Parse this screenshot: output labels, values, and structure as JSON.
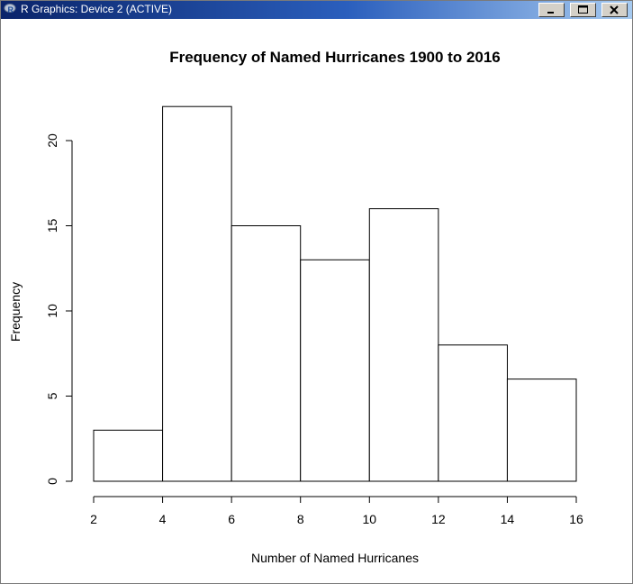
{
  "window": {
    "title": "R Graphics: Device 2 (ACTIVE)",
    "icons": {
      "app": "r-logo-icon",
      "minimize": "minimize-icon",
      "maximize": "maximize-icon",
      "close": "close-icon"
    }
  },
  "chart_data": {
    "type": "bar",
    "subtype": "histogram",
    "title": "Frequency of Named Hurricanes 1900 to 2016",
    "xlabel": "Number of Named Hurricanes",
    "ylabel": "Frequency",
    "bins": [
      {
        "from": 2,
        "to": 4,
        "count": 3
      },
      {
        "from": 4,
        "to": 6,
        "count": 22
      },
      {
        "from": 6,
        "to": 8,
        "count": 15
      },
      {
        "from": 8,
        "to": 10,
        "count": 13
      },
      {
        "from": 10,
        "to": 12,
        "count": 16
      },
      {
        "from": 12,
        "to": 14,
        "count": 8
      },
      {
        "from": 14,
        "to": 16,
        "count": 6
      }
    ],
    "x_ticks": [
      2,
      4,
      6,
      8,
      10,
      12,
      14,
      16
    ],
    "y_ticks": [
      0,
      5,
      10,
      15,
      20
    ],
    "xlim": [
      2,
      16
    ],
    "ylim": [
      0,
      22
    ],
    "grid": false,
    "legend": "none",
    "colors": {
      "bar_fill": "#ffffff",
      "bar_stroke": "#000000"
    }
  }
}
